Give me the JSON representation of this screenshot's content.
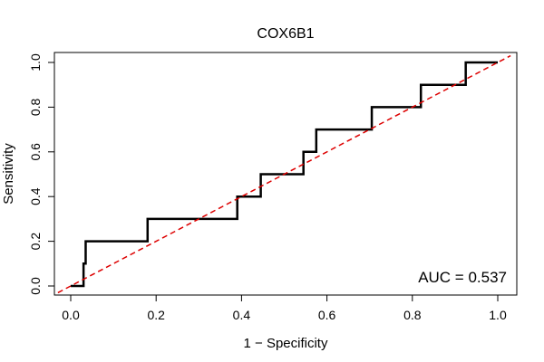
{
  "chart_data": {
    "type": "line",
    "title": "COX6B1",
    "xlabel": "1 − Specificity",
    "ylabel": "Sensitivity",
    "xlim": [
      0,
      1
    ],
    "ylim": [
      0,
      1
    ],
    "x_ticks": [
      "0.0",
      "0.2",
      "0.4",
      "0.6",
      "0.8",
      "1.0"
    ],
    "y_ticks": [
      "0.0",
      "0.2",
      "0.4",
      "0.6",
      "0.8",
      "1.0"
    ],
    "grid": false,
    "annotation": "AUC = 0.537",
    "colors": {
      "roc": "#000000",
      "reference": "#dd0000",
      "axis": "#000000"
    },
    "series": [
      {
        "style": "solid",
        "x": [
          0.0,
          0.03,
          0.03,
          0.035,
          0.035,
          0.18,
          0.18,
          0.39,
          0.39,
          0.445,
          0.445,
          0.545,
          0.545,
          0.575,
          0.575,
          0.705,
          0.705,
          0.82,
          0.82,
          0.925,
          0.925,
          1.0
        ],
        "y": [
          0.0,
          0.0,
          0.1,
          0.1,
          0.2,
          0.2,
          0.3,
          0.3,
          0.4,
          0.4,
          0.5,
          0.5,
          0.6,
          0.6,
          0.7,
          0.7,
          0.8,
          0.8,
          0.9,
          0.9,
          1.0,
          1.0
        ]
      },
      {
        "style": "dashed",
        "x": [
          -0.03,
          1.03
        ],
        "y": [
          -0.03,
          1.03
        ]
      }
    ]
  }
}
